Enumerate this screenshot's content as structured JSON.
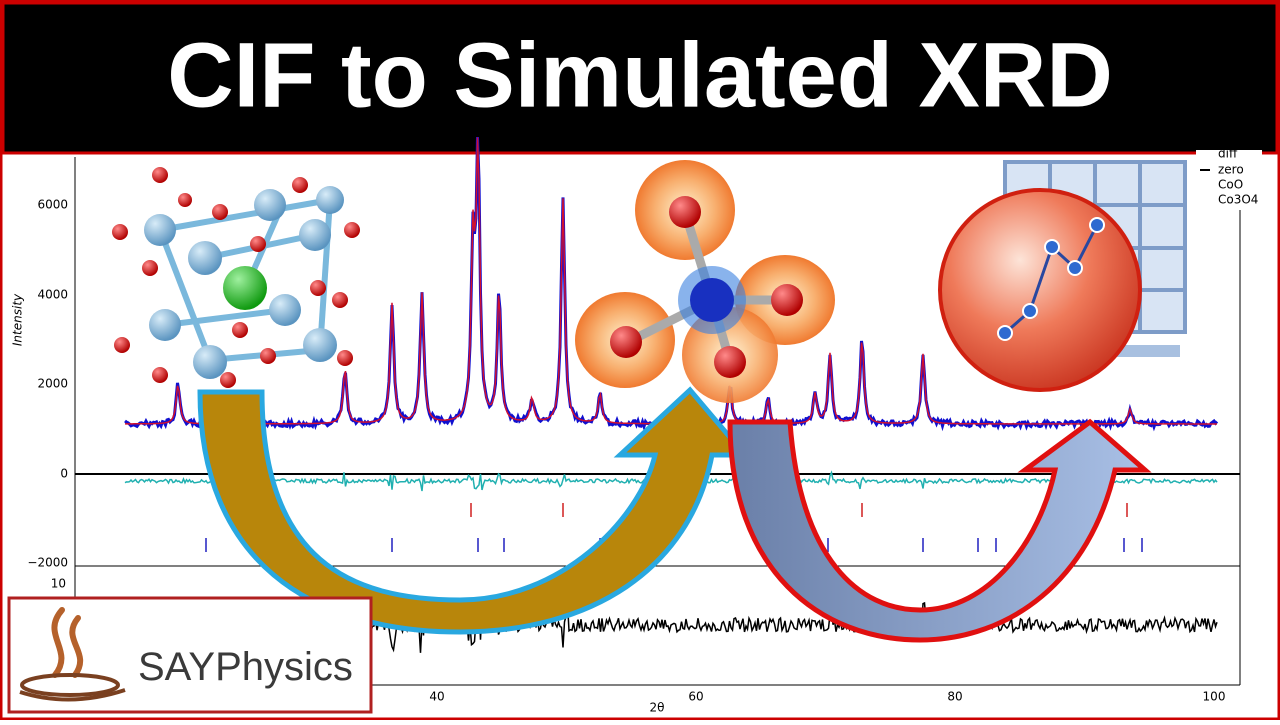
{
  "title": "CIF to Simulated XRD",
  "plot": {
    "y_label": "Intensity",
    "x_label": "2θ",
    "yticks": [
      "6000",
      "4000",
      "2000",
      "0",
      "−2000"
    ],
    "xticks": [
      "40",
      "60",
      "80",
      "100"
    ],
    "lower_yticks": [
      "10"
    ],
    "legend": [
      "diff",
      "zero",
      "CoO",
      "Co3O4"
    ]
  },
  "logo": {
    "text": "SAYPhysics"
  }
}
